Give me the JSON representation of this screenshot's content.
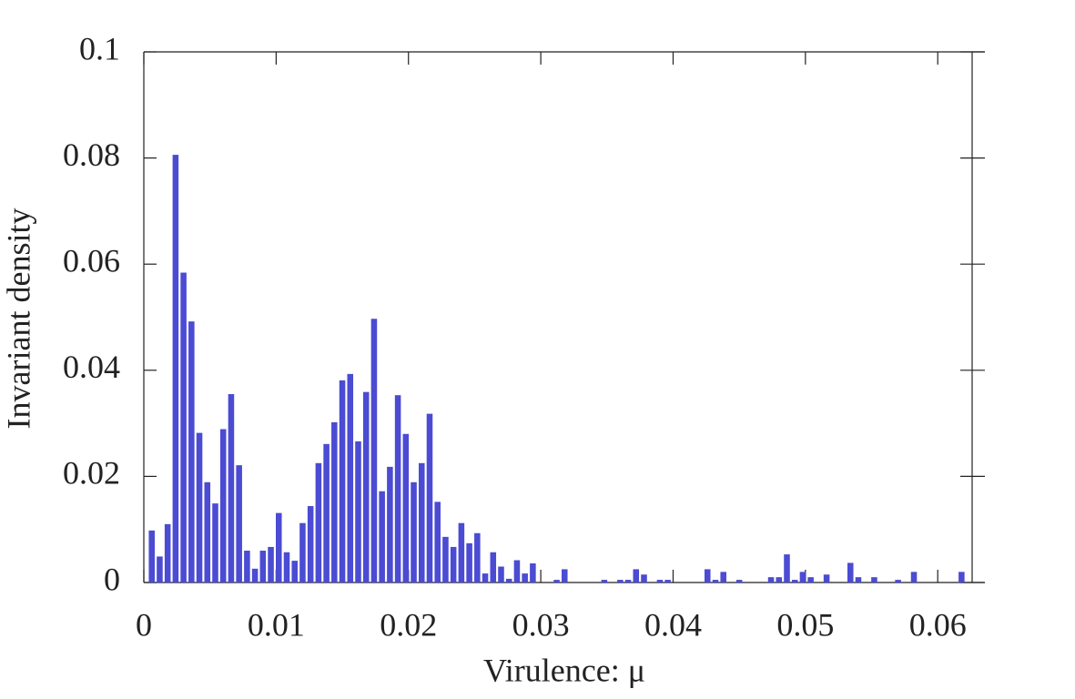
{
  "chart_data": {
    "type": "histogram",
    "xlabel": "Virulence: μ",
    "ylabel": "Invariant density",
    "color": "#4b4bd3",
    "xlim": [
      0,
      0.0626
    ],
    "ylim": [
      0,
      0.1
    ],
    "xticks": [
      0,
      0.01,
      0.02,
      0.03,
      0.04,
      0.05,
      0.06
    ],
    "yticks": [
      0,
      0.02,
      0.04,
      0.06,
      0.08,
      0.1
    ],
    "bins": [
      0.0003,
      0.0009,
      0.0015,
      0.0021,
      0.0027,
      0.0033,
      0.0039,
      0.0045,
      0.0051,
      0.0057,
      0.0063,
      0.0069,
      0.0075,
      0.0081,
      0.0087,
      0.0093,
      0.0099,
      0.0105,
      0.0111,
      0.0117,
      0.0123,
      0.0129,
      0.0135,
      0.0141,
      0.0147,
      0.0153,
      0.0159,
      0.0165,
      0.0171,
      0.0177,
      0.0183,
      0.0189,
      0.0195,
      0.0201,
      0.0207,
      0.0213,
      0.0219,
      0.0225,
      0.0231,
      0.0237,
      0.0243,
      0.0249,
      0.0255,
      0.0261,
      0.0267,
      0.0273,
      0.0279,
      0.0285,
      0.0291,
      0.0297,
      0.0303,
      0.0309,
      0.0315,
      0.0321,
      0.0327,
      0.0333,
      0.0339,
      0.0345,
      0.0351,
      0.0357,
      0.0363,
      0.0369,
      0.0375,
      0.0381,
      0.0387,
      0.0393,
      0.0399,
      0.0405,
      0.0411,
      0.0417,
      0.0423,
      0.0429,
      0.0435,
      0.0441,
      0.0447,
      0.0453,
      0.0459,
      0.0465,
      0.0471,
      0.0477,
      0.0483,
      0.0489,
      0.0495,
      0.0501,
      0.0507,
      0.0513,
      0.0519,
      0.0525,
      0.0531,
      0.0537,
      0.0543,
      0.0549,
      0.0555,
      0.0561,
      0.0567,
      0.0573,
      0.0579,
      0.0585,
      0.0591,
      0.0597,
      0.0603,
      0.0609,
      0.0615,
      0.0621
    ],
    "values": [
      0.0098,
      0.0049,
      0.011,
      0.0806,
      0.0584,
      0.0492,
      0.0282,
      0.0189,
      0.0149,
      0.0289,
      0.0355,
      0.0221,
      0.006,
      0.0026,
      0.006,
      0.0067,
      0.0131,
      0.0057,
      0.0041,
      0.0112,
      0.0144,
      0.0225,
      0.0261,
      0.0302,
      0.0381,
      0.0393,
      0.0266,
      0.0359,
      0.0497,
      0.0172,
      0.0218,
      0.0353,
      0.028,
      0.0189,
      0.0225,
      0.0318,
      0.0152,
      0.0086,
      0.0067,
      0.0112,
      0.0074,
      0.0093,
      0.0017,
      0.0057,
      0.003,
      0.0007,
      0.0042,
      0.0017,
      0.0036,
      0,
      0,
      0.0005,
      0.0025,
      0,
      0,
      0,
      0,
      0.0005,
      0,
      0.0005,
      0.0005,
      0.0025,
      0.0015,
      0,
      0.0005,
      0.0005,
      0,
      0,
      0,
      0,
      0.0025,
      0.0005,
      0.002,
      0,
      0.0005,
      0,
      0,
      0,
      0.001,
      0.001,
      0.0053,
      0.0005,
      0.002,
      0.001,
      0,
      0.0015,
      0,
      0,
      0.0037,
      0.001,
      0,
      0.001,
      0,
      0,
      0.0005,
      0,
      0.002,
      0,
      0,
      0,
      0,
      0,
      0.002
    ]
  }
}
